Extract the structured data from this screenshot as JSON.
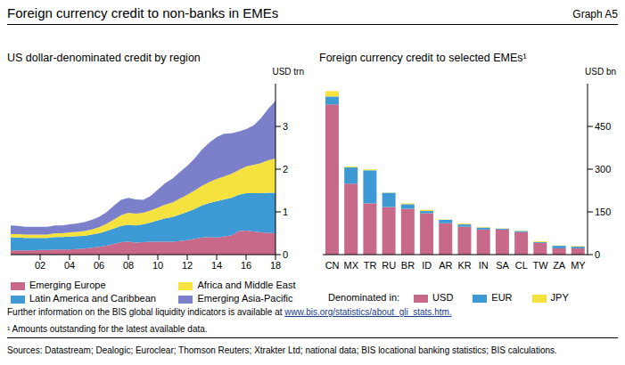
{
  "header": {
    "title": "Foreign currency credit to non-banks in EMEs",
    "label": "Graph A5"
  },
  "chart_data": [
    {
      "type": "area",
      "stacked": true,
      "grid": false,
      "title": "US dollar-denominated credit by region",
      "y_label": "USD trn",
      "x": [
        2000,
        2000.5,
        2001,
        2001.5,
        2002,
        2002.5,
        2003,
        2003.5,
        2004,
        2004.5,
        2005,
        2005.5,
        2006,
        2006.5,
        2007,
        2007.5,
        2008,
        2008.5,
        2009,
        2009.5,
        2010,
        2010.5,
        2011,
        2011.5,
        2012,
        2012.5,
        2013,
        2013.5,
        2014,
        2014.5,
        2015,
        2015.5,
        2016,
        2016.5,
        2017,
        2017.5,
        2018
      ],
      "xlim": [
        2000,
        2018
      ],
      "xticks": [
        {
          "value": 2002,
          "label": "02"
        },
        {
          "value": 2004,
          "label": "04"
        },
        {
          "value": 2006,
          "label": "06"
        },
        {
          "value": 2008,
          "label": "08"
        },
        {
          "value": 2010,
          "label": "10"
        },
        {
          "value": 2012,
          "label": "12"
        },
        {
          "value": 2014,
          "label": "14"
        },
        {
          "value": 2016,
          "label": "16"
        },
        {
          "value": 2018,
          "label": "18"
        }
      ],
      "ylim": [
        0,
        4
      ],
      "yticks": [
        0,
        1,
        2,
        3
      ],
      "series": [
        {
          "name": "Emerging Europe",
          "color": "#c8698a",
          "values": [
            0.1,
            0.1,
            0.1,
            0.1,
            0.11,
            0.11,
            0.12,
            0.12,
            0.12,
            0.13,
            0.14,
            0.16,
            0.18,
            0.21,
            0.25,
            0.29,
            0.3,
            0.28,
            0.29,
            0.3,
            0.3,
            0.3,
            0.3,
            0.32,
            0.34,
            0.37,
            0.4,
            0.41,
            0.4,
            0.42,
            0.45,
            0.55,
            0.56,
            0.54,
            0.52,
            0.51,
            0.5
          ]
        },
        {
          "name": "Latin America and Caribbean",
          "color": "#3d9ad4",
          "values": [
            0.3,
            0.3,
            0.29,
            0.29,
            0.28,
            0.28,
            0.29,
            0.29,
            0.3,
            0.3,
            0.3,
            0.31,
            0.32,
            0.34,
            0.36,
            0.38,
            0.4,
            0.4,
            0.42,
            0.45,
            0.5,
            0.55,
            0.58,
            0.62,
            0.66,
            0.7,
            0.75,
            0.8,
            0.85,
            0.87,
            0.88,
            0.85,
            0.88,
            0.9,
            0.92,
            0.94,
            0.95
          ]
        },
        {
          "name": "Africa and Middle East",
          "color": "#f6e23f",
          "values": [
            0.08,
            0.08,
            0.08,
            0.08,
            0.08,
            0.08,
            0.09,
            0.09,
            0.1,
            0.1,
            0.11,
            0.12,
            0.14,
            0.17,
            0.21,
            0.25,
            0.28,
            0.28,
            0.27,
            0.28,
            0.3,
            0.32,
            0.34,
            0.37,
            0.4,
            0.43,
            0.46,
            0.49,
            0.52,
            0.54,
            0.56,
            0.58,
            0.62,
            0.66,
            0.7,
            0.76,
            0.8
          ]
        },
        {
          "name": "Emerging Asia-Pacific",
          "color": "#7c7fca",
          "values": [
            0.2,
            0.19,
            0.18,
            0.18,
            0.18,
            0.18,
            0.18,
            0.18,
            0.19,
            0.2,
            0.21,
            0.22,
            0.24,
            0.27,
            0.32,
            0.36,
            0.35,
            0.33,
            0.3,
            0.34,
            0.42,
            0.5,
            0.56,
            0.62,
            0.68,
            0.75,
            0.85,
            0.92,
            0.98,
            1.0,
            0.95,
            0.9,
            0.88,
            0.92,
            1.05,
            1.2,
            1.35
          ]
        }
      ]
    },
    {
      "type": "bar",
      "stacked": true,
      "grid": false,
      "title": "Foreign currency credit to selected EMEs¹",
      "y_label": "USD bn",
      "legend_title": "Denominated in:",
      "categories": [
        "CN",
        "MX",
        "TR",
        "RU",
        "BR",
        "ID",
        "AR",
        "KR",
        "IN",
        "SA",
        "CL",
        "TW",
        "ZA",
        "MY"
      ],
      "ylim": [
        0,
        600
      ],
      "yticks": [
        0,
        150,
        300,
        450
      ],
      "series": [
        {
          "name": "USD",
          "color": "#c8698a",
          "values": [
            527,
            249,
            180,
            167,
            161,
            145,
            110,
            98,
            88,
            88,
            79,
            41,
            22,
            22
          ]
        },
        {
          "name": "EUR",
          "color": "#3d9ad4",
          "values": [
            28,
            57,
            116,
            50,
            16,
            8,
            12,
            8,
            7,
            3,
            4,
            3,
            9,
            6
          ]
        },
        {
          "name": "JPY",
          "color": "#f6e23f",
          "values": [
            19,
            3,
            3,
            1,
            3,
            4,
            1,
            3,
            2,
            1,
            1,
            3,
            1,
            2
          ]
        }
      ]
    }
  ],
  "footer": {
    "info_text": "Further information on the BIS global liquidity indicators is available at",
    "info_link": "www.bis.org/statistics/about_gli_stats.htm.",
    "footnote": "¹ Amounts outstanding for the latest available data.",
    "sources": "Sources: Datastream; Dealogic; Euroclear; Thomson Reuters; Xtrakter Ltd; national data; BIS locational banking statistics; BIS calculations."
  }
}
